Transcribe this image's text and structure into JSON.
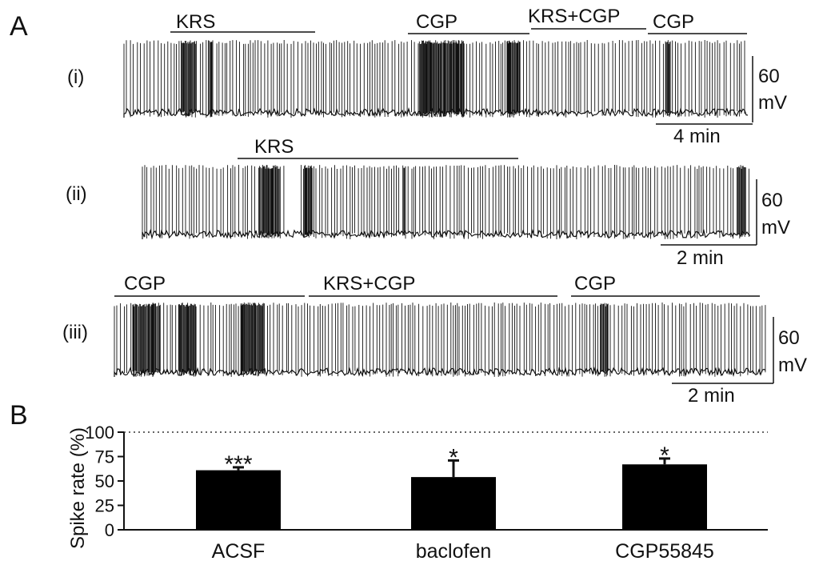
{
  "panels": {
    "a": {
      "letter": "A",
      "traces": [
        {
          "label": "(i)",
          "scale_voltage": [
            "60",
            "mV"
          ],
          "scale_time": "4 min",
          "drug_bars": [
            {
              "name": "KRS"
            },
            {
              "name": "CGP"
            },
            {
              "name": "KRS+CGP"
            },
            {
              "name": "CGP"
            }
          ]
        },
        {
          "label": "(ii)",
          "scale_voltage": [
            "60",
            "mV"
          ],
          "scale_time": "2 min",
          "drug_bars": [
            {
              "name": "KRS"
            }
          ]
        },
        {
          "label": "(iii)",
          "scale_voltage": [
            "60",
            "mV"
          ],
          "scale_time": "2 min",
          "drug_bars": [
            {
              "name": "CGP"
            },
            {
              "name": "KRS+CGP"
            },
            {
              "name": "CGP"
            }
          ]
        }
      ]
    },
    "b": {
      "letter": "B"
    }
  },
  "chart_data": {
    "type": "bar",
    "ylabel": "Spike rate (%)",
    "categories": [
      "ACSF",
      "baclofen",
      "CGP55845"
    ],
    "values": [
      61,
      54,
      67
    ],
    "errors": [
      3,
      17,
      6
    ],
    "significance": [
      "***",
      "*",
      "*"
    ],
    "ylim": [
      0,
      100
    ],
    "yticks": [
      "0",
      "25",
      "50",
      "75",
      "100"
    ],
    "reference_line": 100,
    "bar_color": "#000000"
  }
}
